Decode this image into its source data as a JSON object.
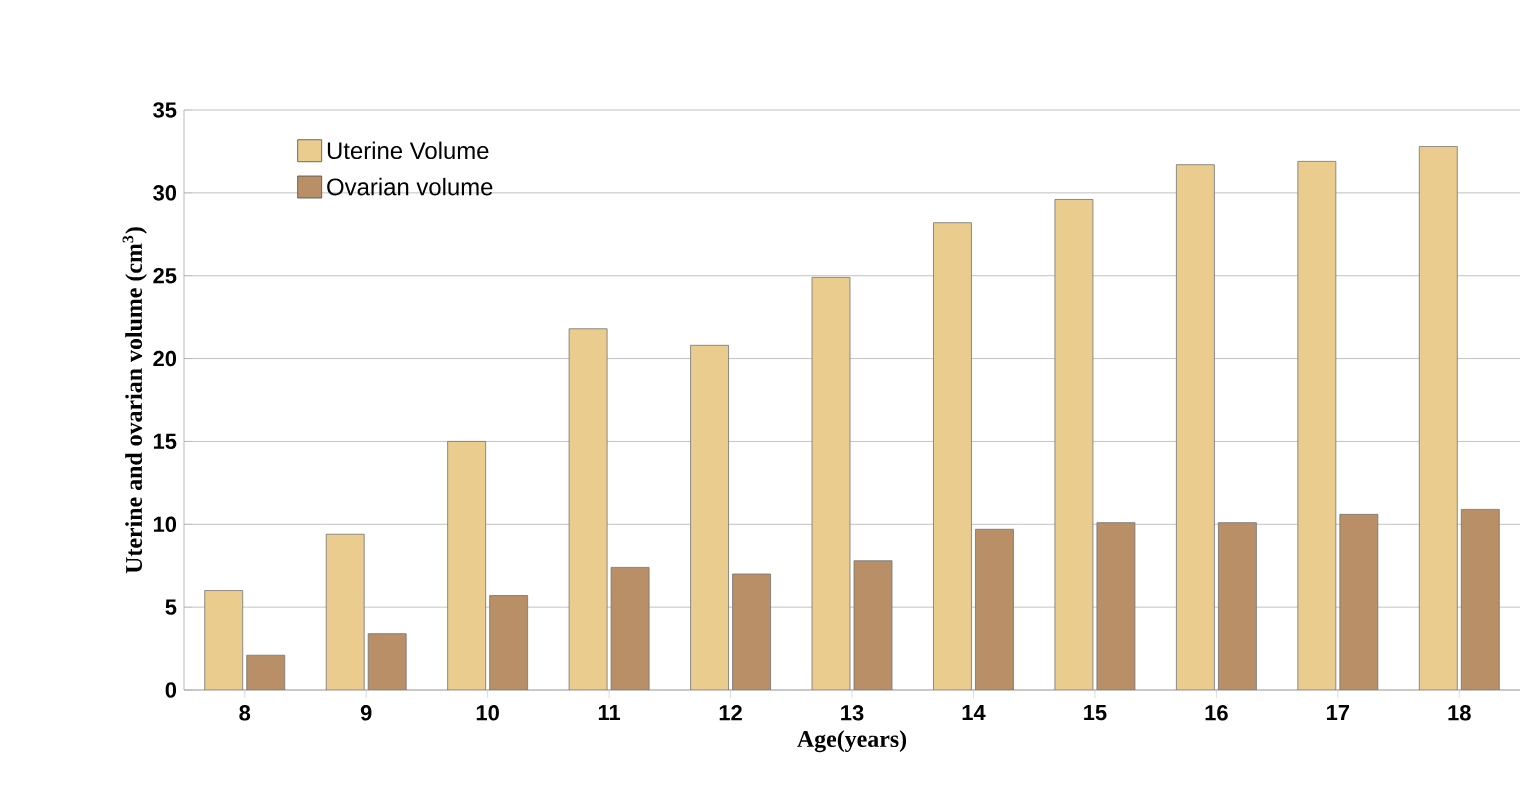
{
  "chart_data": {
    "type": "bar",
    "xlabel": "Age(years)",
    "ylabel": "Uterine and ovarian volume (cm$^{3}$)",
    "categories": [
      "8",
      "9",
      "10",
      "11",
      "12",
      "13",
      "14",
      "15",
      "16",
      "17",
      "18"
    ],
    "series": [
      {
        "name": "Uterine Volume",
        "color": "#e9cc8e",
        "values": [
          6,
          9.4,
          15,
          21.8,
          20.8,
          24.9,
          28.2,
          29.6,
          31.7,
          31.9,
          32.8
        ]
      },
      {
        "name": "Ovarian volume",
        "color": "#b88f66",
        "values": [
          2.1,
          3.4,
          5.7,
          7.4,
          7.0,
          7.8,
          9.7,
          10.1,
          10.1,
          10.6,
          10.9
        ]
      }
    ],
    "ylim": [
      0,
      35
    ],
    "yticks": [
      0,
      5,
      10,
      15,
      20,
      25,
      30,
      35
    ],
    "grid": "y",
    "legend": "top left"
  }
}
